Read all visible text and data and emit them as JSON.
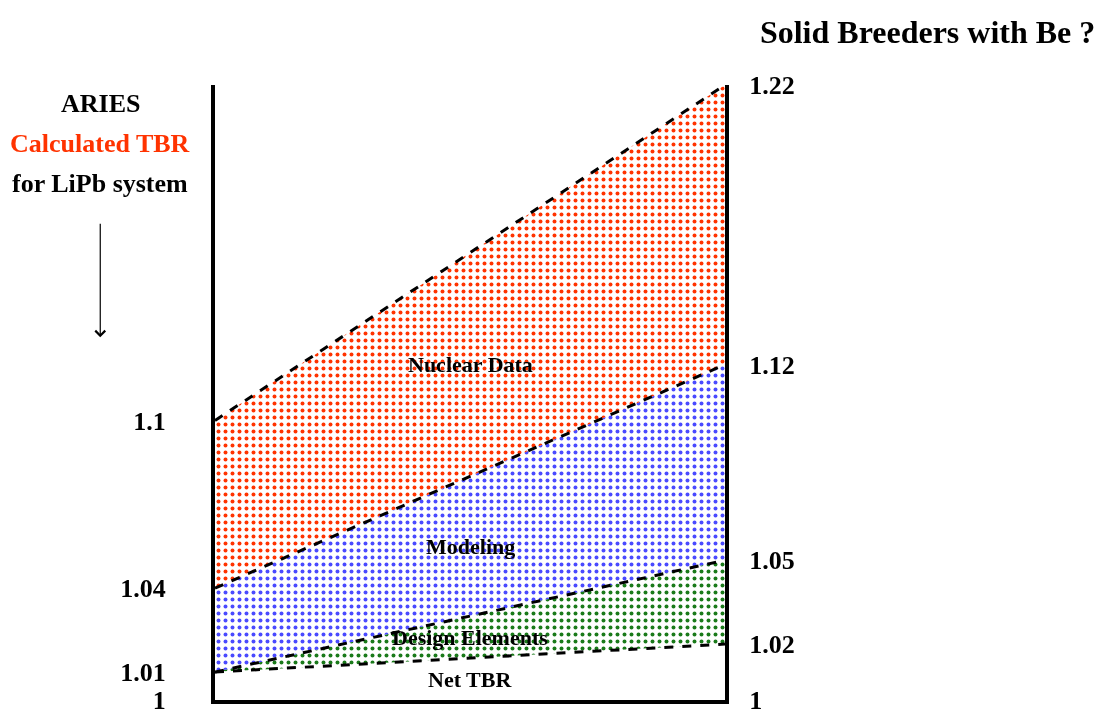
{
  "chart_data": {
    "type": "area",
    "title": "Solid Breeders with Be ?",
    "categories": [
      null,
      null
    ],
    "series": [
      {
        "name": "Net TBR",
        "color": "#ffffff",
        "values": [
          1.01,
          1.02
        ]
      },
      {
        "name": "Design Elements",
        "color": "#1a7a1a",
        "values": [
          1.01,
          1.05
        ]
      },
      {
        "name": "Modeling",
        "color": "#4a4aff",
        "values": [
          1.04,
          1.12
        ]
      },
      {
        "name": "Nuclear Data",
        "color": "#ff3300",
        "values": [
          1.1,
          1.22
        ]
      }
    ],
    "ylim": [
      1,
      1.22
    ],
    "yticks": [
      1,
      1.01,
      1.04,
      1.1
    ],
    "y2lim": [
      1,
      1.22
    ],
    "y2ticks": [
      1,
      1.02,
      1.05,
      1.12,
      1.22
    ],
    "annotations": [
      "ARIES",
      "Calculated TBR",
      "for LiPb system"
    ],
    "line_style": "dashed",
    "grid": false
  }
}
